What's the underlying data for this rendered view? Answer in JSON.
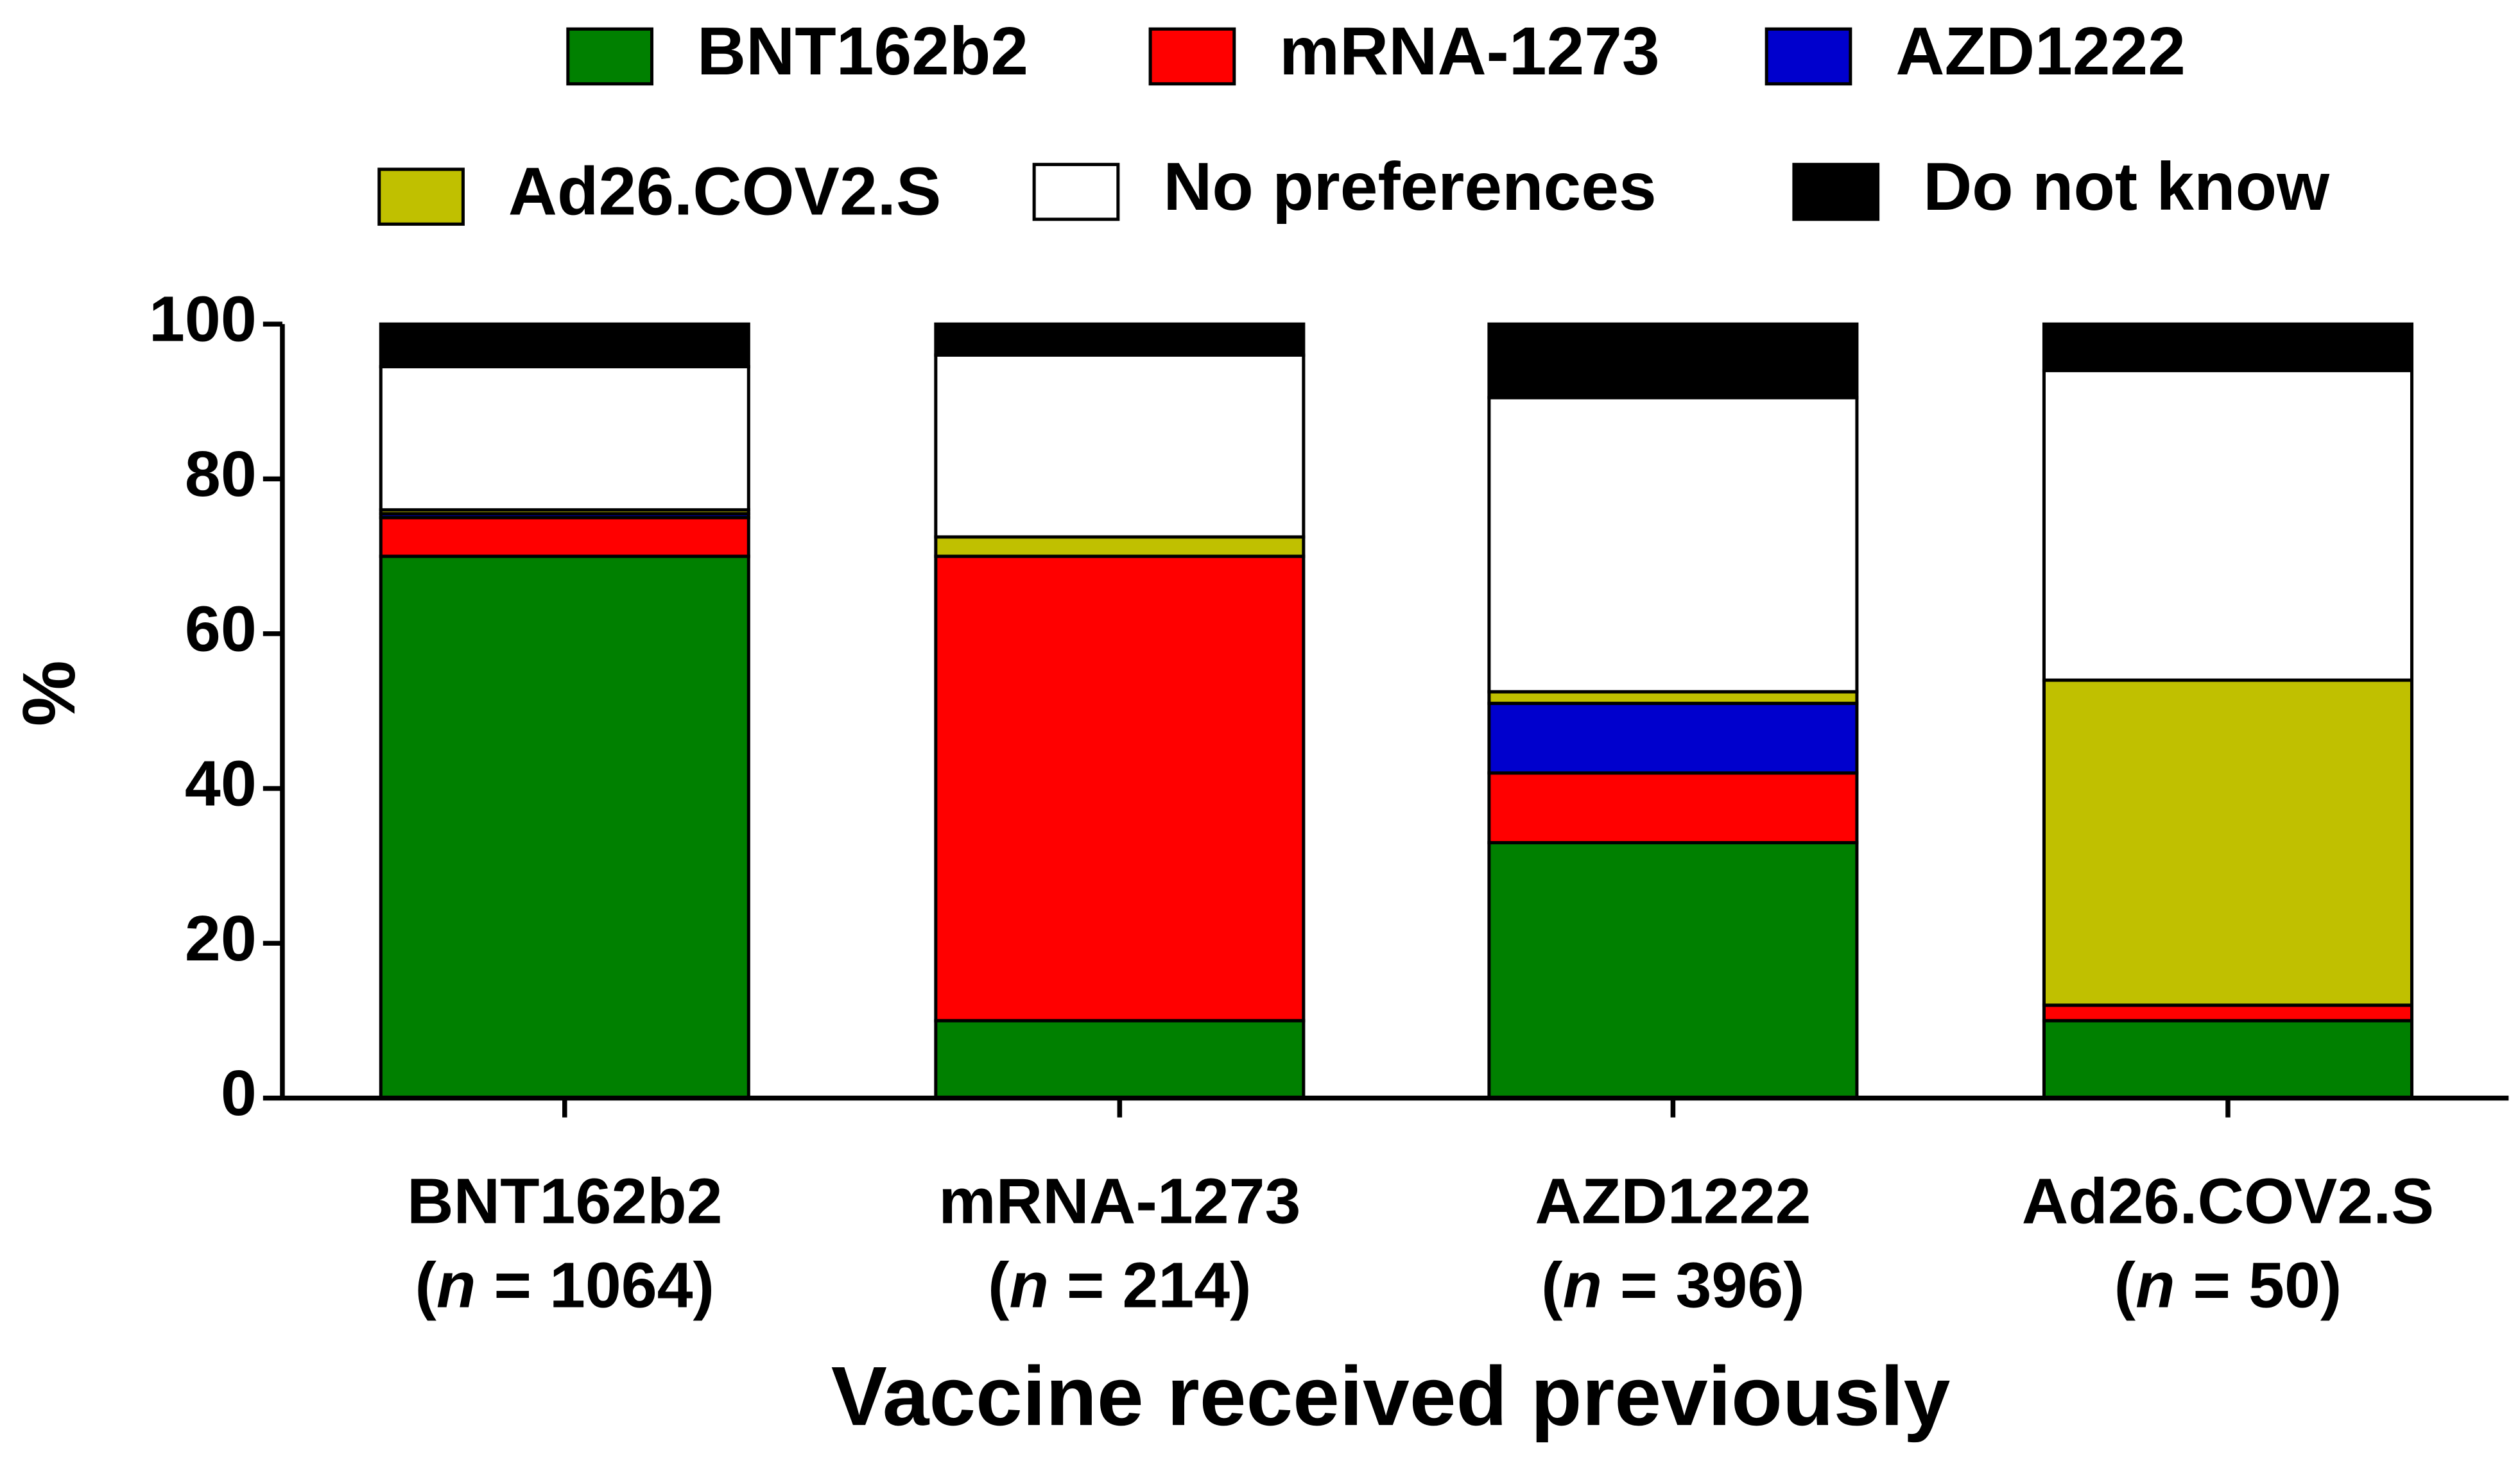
{
  "chart_data": {
    "type": "stacked_bar",
    "x_label": "Vaccine received previously",
    "y_label": "%",
    "categories": [
      "BNT162b2",
      "mRNA-1273",
      "AZD1222",
      "Ad26.COV2.S"
    ],
    "sample_labels": [
      {
        "open": "(",
        "var": "n",
        "rest": " = 1064)"
      },
      {
        "open": "(",
        "var": "n",
        "rest": " = 214)"
      },
      {
        "open": "(",
        "var": "n",
        "rest": " = 396)"
      },
      {
        "open": "(",
        "var": "n",
        "rest": " = 50)"
      }
    ],
    "series": [
      {
        "name": "BNT162b2",
        "color": "#008000",
        "values": [
          70,
          10,
          33,
          10
        ]
      },
      {
        "name": "mRNA-1273",
        "color": "#ff0000",
        "values": [
          5,
          60,
          9,
          2
        ]
      },
      {
        "name": "AZD1222",
        "color": "#0000cd",
        "values": [
          0.5,
          0,
          9,
          0
        ]
      },
      {
        "name": "Ad26.COV2.S",
        "color": "#c0c000",
        "values": [
          0.5,
          2.5,
          1.5,
          42
        ]
      },
      {
        "name": "No preferences",
        "color": "#ffffff",
        "values": [
          18.5,
          23.5,
          38,
          40
        ]
      },
      {
        "name": "Do not know",
        "color": "#000000",
        "values": [
          5.5,
          4,
          9.5,
          6
        ]
      }
    ],
    "ylim": [
      0,
      100
    ],
    "yticks": [
      0,
      20,
      40,
      60,
      80,
      100
    ]
  }
}
